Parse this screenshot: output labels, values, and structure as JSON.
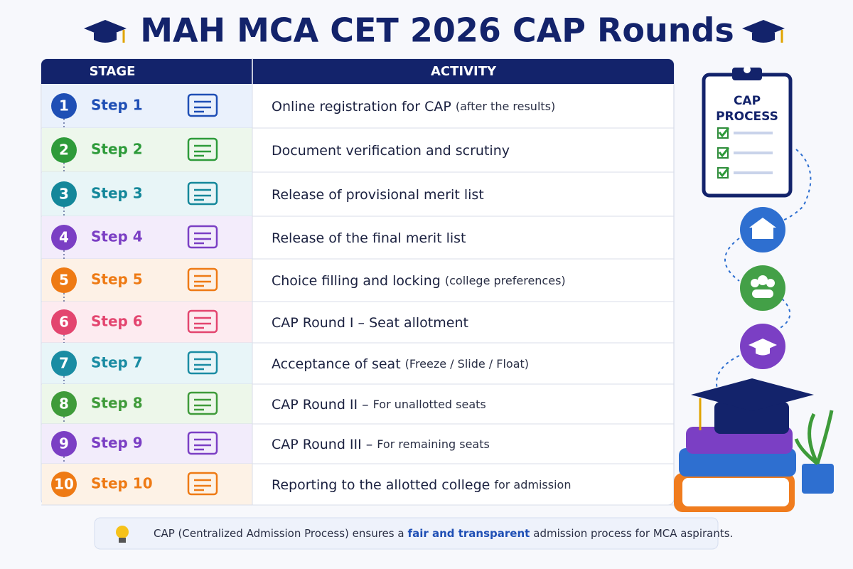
{
  "header": {
    "title": "MAH MCA CET 2026 CAP Rounds"
  },
  "table": {
    "columns": [
      "STAGE",
      "ACTIVITY"
    ],
    "rows": [
      {
        "number": "1",
        "step": "Step 1",
        "activity": "Online registration for CAP",
        "note": "(after the results)"
      },
      {
        "number": "2",
        "step": "Step 2",
        "activity": "Document verification and scrutiny"
      },
      {
        "number": "3",
        "step": "Step 3",
        "activity": "Release of provisional merit list"
      },
      {
        "number": "4",
        "step": "Step 4",
        "activity": "Release of the final merit list"
      },
      {
        "number": "5",
        "step": "Step 5",
        "activity": "Choice filling and locking",
        "note": "(college preferences)"
      },
      {
        "number": "6",
        "step": "Step 6",
        "activity": "CAP Round I – Seat allotment"
      },
      {
        "number": "7",
        "step": "Step 7",
        "activity": "Acceptance of seat",
        "note": "(Freeze / Slide / Float)"
      },
      {
        "number": "8",
        "step": "Step 8",
        "activity": "CAP Round II –",
        "note": "For unallotted seats"
      },
      {
        "number": "9",
        "step": "Step 9",
        "activity": "CAP Round III –",
        "note": "For remaining seats"
      },
      {
        "number": "10",
        "step": "Step 10",
        "activity": "Reporting to the allotted college",
        "note": "for admission"
      }
    ]
  },
  "clipboard": {
    "line1": "CAP",
    "line2": "PROCESS"
  },
  "footer": {
    "before": "CAP (Centralized Admission Process) ensures a",
    "highlight": "fair and transparent",
    "after": "admission process for MCA aspirants."
  }
}
